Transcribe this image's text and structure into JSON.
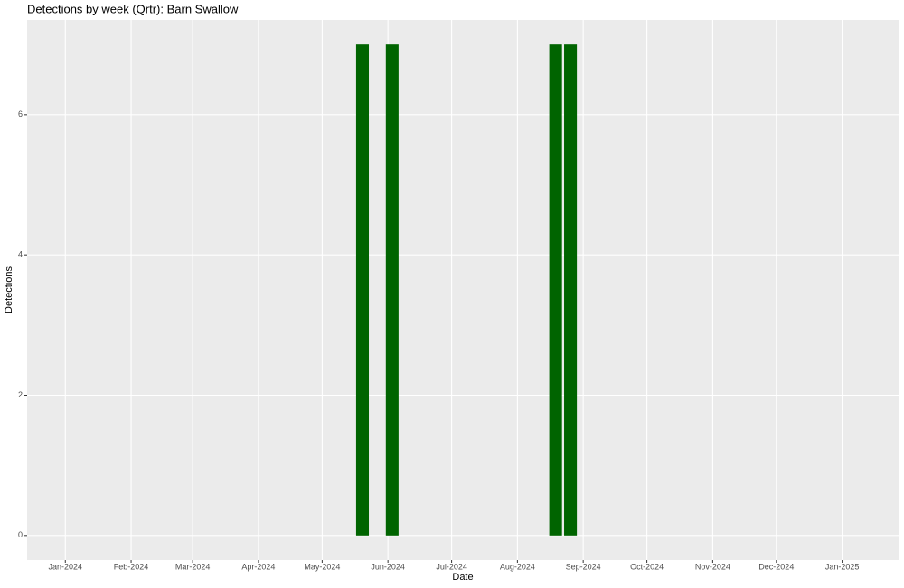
{
  "chart_data": {
    "type": "bar",
    "title": "Detections by week (Qrtr): Barn Swallow",
    "x_label": "Date",
    "y_label": "Detections",
    "x": [
      "2024-05-20",
      "2024-06-03",
      "2024-08-19",
      "2024-08-26"
    ],
    "values": [
      7,
      7,
      7,
      7
    ],
    "color": "#006400",
    "xlim": [
      "2023-12-14",
      "2025-01-28"
    ],
    "xticks": [
      {
        "value": "2024-01-01",
        "label": "Jan-2024"
      },
      {
        "value": "2024-02-01",
        "label": "Feb-2024"
      },
      {
        "value": "2024-03-01",
        "label": "Mar-2024"
      },
      {
        "value": "2024-04-01",
        "label": "Apr-2024"
      },
      {
        "value": "2024-05-01",
        "label": "May-2024"
      },
      {
        "value": "2024-06-01",
        "label": "Jun-2024"
      },
      {
        "value": "2024-07-01",
        "label": "Jul-2024"
      },
      {
        "value": "2024-08-01",
        "label": "Aug-2024"
      },
      {
        "value": "2024-09-01",
        "label": "Sep-2024"
      },
      {
        "value": "2024-10-01",
        "label": "Oct-2024"
      },
      {
        "value": "2024-11-01",
        "label": "Nov-2024"
      },
      {
        "value": "2024-12-01",
        "label": "Dec-2024"
      },
      {
        "value": "2025-01-01",
        "label": "Jan-2025"
      }
    ],
    "ylim": [
      -0.35,
      7.35
    ],
    "yticks": [
      0,
      2,
      4,
      6
    ],
    "grid": true
  }
}
